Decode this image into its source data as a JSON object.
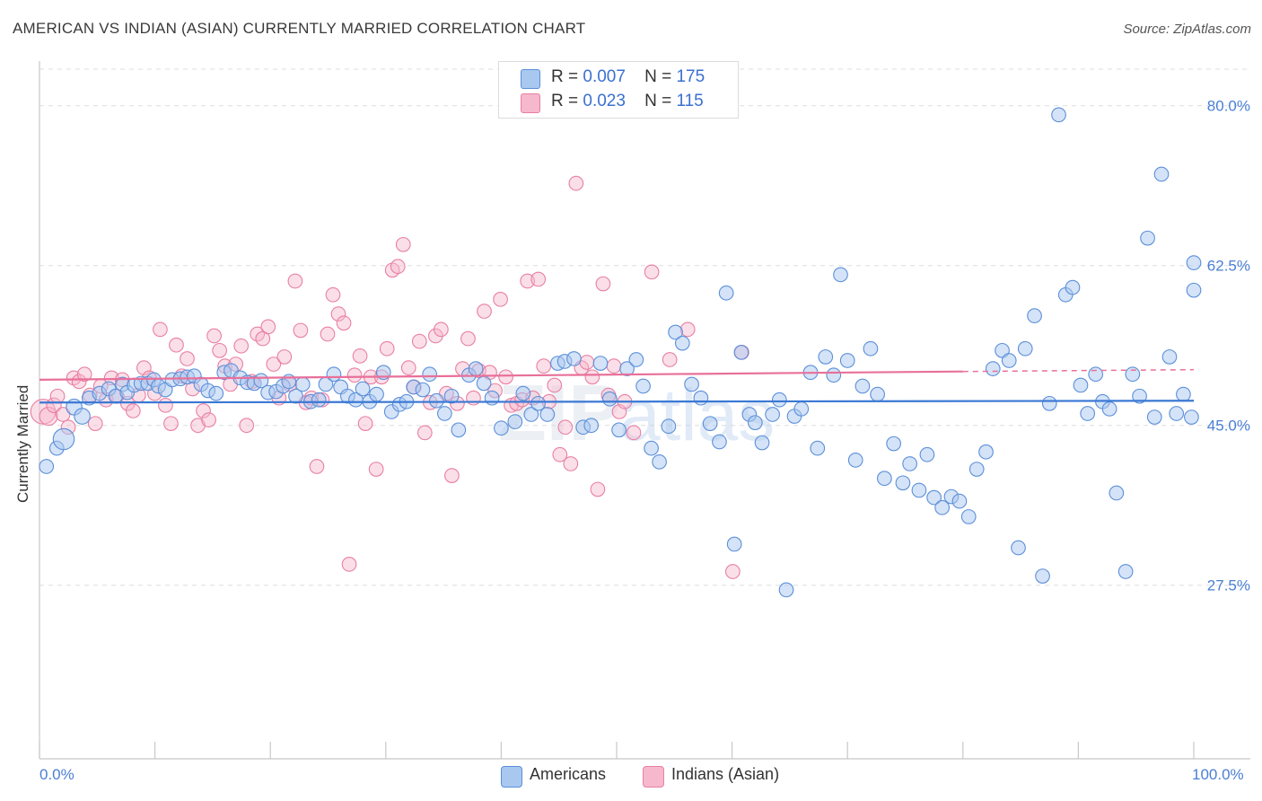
{
  "header": {
    "title": "AMERICAN VS INDIAN (ASIAN) CURRENTLY MARRIED CORRELATION CHART",
    "source": "Source: ZipAtlas.com"
  },
  "legend_top": {
    "americans": {
      "r_label": "R =",
      "r_value": "0.007",
      "n_label": "N =",
      "n_value": "175"
    },
    "indians": {
      "r_label": "R =",
      "r_value": "0.023",
      "n_label": "N =",
      "n_value": "115"
    }
  },
  "legend_bottom": {
    "americans": "Americans",
    "indians": "Indians (Asian)"
  },
  "watermark": {
    "zip": "ZIP",
    "atlas": "atlas"
  },
  "colors": {
    "americans_fill": "#a9c8f0",
    "americans_stroke": "#5b8fd9",
    "americans_line": "#3a78d4",
    "indians_fill": "#f6b8cc",
    "indians_stroke": "#e87fa3",
    "indians_line": "#e8709a",
    "tick_label": "#4a7fd4",
    "grid": "#dddddd"
  },
  "chart_data": {
    "type": "scatter",
    "title": "AMERICAN VS INDIAN (ASIAN) CURRENTLY MARRIED CORRELATION CHART",
    "xlabel": "",
    "ylabel": "Currently Married",
    "xlim": [
      0,
      100
    ],
    "ylim": [
      8.5,
      84
    ],
    "x_tick_labels": [
      "0.0%",
      "100.0%"
    ],
    "y_ticks": [
      27.5,
      45.0,
      62.5,
      80.0
    ],
    "y_tick_labels": [
      "27.5%",
      "45.0%",
      "62.5%",
      "80.0%"
    ],
    "grid": "horizontal dashed",
    "legend_position": "top-center",
    "series": [
      {
        "name": "Americans",
        "R": 0.007,
        "N": 175,
        "trend": {
          "x": [
            0,
            100
          ],
          "y": [
            47.5,
            47.7
          ]
        },
        "points": [
          [
            0.6,
            40.5,
            1
          ],
          [
            1.5,
            42.5,
            1
          ],
          [
            2.1,
            43.5,
            2
          ],
          [
            3.0,
            47,
            1.5
          ],
          [
            3.7,
            46,
            1.5
          ],
          [
            4.3,
            48,
            1
          ],
          [
            5.2,
            48.5,
            1
          ],
          [
            6.0,
            49,
            1
          ],
          [
            6.6,
            48.2,
            1
          ],
          [
            7.2,
            49.5,
            1
          ],
          [
            7.6,
            48.6,
            1
          ],
          [
            8.2,
            49.4,
            1
          ],
          [
            8.8,
            49.6,
            1
          ],
          [
            9.4,
            49.6,
            1
          ],
          [
            9.9,
            50,
            1
          ],
          [
            10.3,
            49.3,
            1
          ],
          [
            10.9,
            48.9,
            1
          ],
          [
            11.5,
            50,
            1
          ],
          [
            12.2,
            50.1,
            1
          ],
          [
            12.8,
            50.3,
            1
          ],
          [
            13.4,
            50.4,
            1
          ],
          [
            14.0,
            49.5,
            1
          ],
          [
            14.6,
            48.8,
            1
          ],
          [
            15.3,
            48.5,
            1
          ],
          [
            16.0,
            50.8,
            1
          ],
          [
            16.6,
            51,
            1
          ],
          [
            17.4,
            50.2,
            1
          ],
          [
            18.0,
            49.7,
            1
          ],
          [
            18.6,
            49.6,
            1
          ],
          [
            19.2,
            49.9,
            1
          ],
          [
            19.8,
            48.6,
            1
          ],
          [
            20.5,
            48.7,
            1
          ],
          [
            21.1,
            49.3,
            1
          ],
          [
            21.6,
            49.8,
            1
          ],
          [
            22.2,
            48.2,
            1
          ],
          [
            22.8,
            49.5,
            1
          ],
          [
            23.5,
            47.6,
            1
          ],
          [
            24.2,
            47.8,
            1
          ],
          [
            24.8,
            49.5,
            1
          ],
          [
            25.5,
            50.6,
            1
          ],
          [
            26.1,
            49.2,
            1
          ],
          [
            26.7,
            48.2,
            1
          ],
          [
            27.4,
            47.8,
            1
          ],
          [
            28.0,
            49.0,
            1
          ],
          [
            28.6,
            47.6,
            1
          ],
          [
            29.2,
            48.4,
            1
          ],
          [
            29.8,
            50.8,
            1
          ],
          [
            30.5,
            46.5,
            1
          ],
          [
            31.2,
            47.3,
            1
          ],
          [
            31.8,
            47.6,
            1
          ],
          [
            32.4,
            49.2,
            1
          ],
          [
            33.2,
            48.9,
            1
          ],
          [
            33.8,
            50.6,
            1
          ],
          [
            34.4,
            47.7,
            1
          ],
          [
            35.1,
            46.3,
            1
          ],
          [
            35.7,
            48.2,
            1
          ],
          [
            36.3,
            44.5,
            1
          ],
          [
            37.2,
            50.5,
            1
          ],
          [
            37.8,
            51.2,
            1
          ],
          [
            38.5,
            49.6,
            1
          ],
          [
            39.2,
            48.0,
            1
          ],
          [
            40.0,
            44.7,
            1
          ],
          [
            41.2,
            45.4,
            1
          ],
          [
            41.9,
            48.5,
            1
          ],
          [
            42.6,
            46.2,
            1
          ],
          [
            43.2,
            47.4,
            1
          ],
          [
            44.0,
            46.2,
            1
          ],
          [
            44.9,
            51.8,
            1
          ],
          [
            45.5,
            52,
            1
          ],
          [
            46.3,
            52.3,
            1
          ],
          [
            47.1,
            44.8,
            1
          ],
          [
            47.8,
            45.0,
            1
          ],
          [
            48.6,
            51.8,
            1
          ],
          [
            49.4,
            47.9,
            1
          ],
          [
            50.2,
            44.5,
            1
          ],
          [
            50.9,
            51.2,
            1
          ],
          [
            51.7,
            52.2,
            1
          ],
          [
            52.3,
            49.3,
            1
          ],
          [
            53.0,
            42.5,
            1
          ],
          [
            53.7,
            41.0,
            1
          ],
          [
            54.5,
            44.9,
            1
          ],
          [
            55.1,
            55.2,
            1
          ],
          [
            55.7,
            54,
            1
          ],
          [
            56.5,
            49.5,
            1
          ],
          [
            57.3,
            48.0,
            1
          ],
          [
            58.1,
            45.2,
            1
          ],
          [
            58.9,
            43.2,
            1
          ],
          [
            59.5,
            59.5,
            1
          ],
          [
            60.2,
            32.0,
            1
          ],
          [
            60.8,
            53,
            1
          ],
          [
            61.5,
            46.2,
            1
          ],
          [
            62.0,
            45.3,
            1
          ],
          [
            62.6,
            43.1,
            1
          ],
          [
            63.5,
            46.2,
            1
          ],
          [
            64.1,
            47.8,
            1
          ],
          [
            64.7,
            27.0,
            1
          ],
          [
            65.4,
            46.0,
            1
          ],
          [
            66.0,
            46.8,
            1
          ],
          [
            66.8,
            50.8,
            1
          ],
          [
            67.4,
            42.5,
            1
          ],
          [
            68.1,
            52.5,
            1
          ],
          [
            68.8,
            50.5,
            1
          ],
          [
            69.4,
            61.5,
            1
          ],
          [
            70.0,
            52.1,
            1
          ],
          [
            70.7,
            41.2,
            1
          ],
          [
            71.3,
            49.3,
            1
          ],
          [
            72.0,
            53.4,
            1
          ],
          [
            72.6,
            48.4,
            1
          ],
          [
            73.2,
            39.2,
            1
          ],
          [
            74.0,
            43.0,
            1
          ],
          [
            74.8,
            38.7,
            1
          ],
          [
            75.4,
            40.8,
            1
          ],
          [
            76.2,
            37.9,
            1
          ],
          [
            76.9,
            41.8,
            1
          ],
          [
            77.5,
            37.1,
            1
          ],
          [
            78.2,
            36.0,
            1
          ],
          [
            79.0,
            37.2,
            1
          ],
          [
            79.7,
            36.7,
            1
          ],
          [
            80.5,
            35.0,
            1
          ],
          [
            81.2,
            40.2,
            1
          ],
          [
            82.0,
            42.1,
            1
          ],
          [
            82.6,
            51.2,
            1
          ],
          [
            83.4,
            53.2,
            1
          ],
          [
            84.0,
            52.1,
            1
          ],
          [
            84.8,
            31.6,
            1
          ],
          [
            85.4,
            53.4,
            1
          ],
          [
            86.2,
            57.0,
            1
          ],
          [
            86.9,
            28.5,
            1
          ],
          [
            87.5,
            47.4,
            1
          ],
          [
            88.3,
            79.0,
            1
          ],
          [
            88.9,
            59.3,
            1
          ],
          [
            89.5,
            60.1,
            1
          ],
          [
            90.2,
            49.4,
            1
          ],
          [
            90.8,
            46.3,
            1
          ],
          [
            91.5,
            50.6,
            1
          ],
          [
            92.1,
            47.6,
            1
          ],
          [
            92.7,
            46.8,
            1
          ],
          [
            93.3,
            37.6,
            1
          ],
          [
            94.1,
            29.0,
            1
          ],
          [
            94.7,
            50.6,
            1
          ],
          [
            95.3,
            48.2,
            1
          ],
          [
            96.0,
            65.5,
            1
          ],
          [
            96.6,
            45.9,
            1
          ],
          [
            97.2,
            72.5,
            1
          ],
          [
            97.9,
            52.5,
            1
          ],
          [
            98.5,
            46.3,
            1
          ],
          [
            99.1,
            48.4,
            1
          ],
          [
            99.8,
            45.9,
            1
          ],
          [
            100.0,
            62.8,
            1
          ],
          [
            100.0,
            59.8,
            1
          ]
        ]
      },
      {
        "name": "Indians (Asian)",
        "R": 0.023,
        "N": 115,
        "trend": {
          "x": [
            0,
            80
          ],
          "y": [
            50.0,
            50.9
          ]
        },
        "trend_dashed": {
          "x": [
            80,
            100
          ],
          "y": [
            50.9,
            51.1
          ]
        }
      }
    ]
  }
}
